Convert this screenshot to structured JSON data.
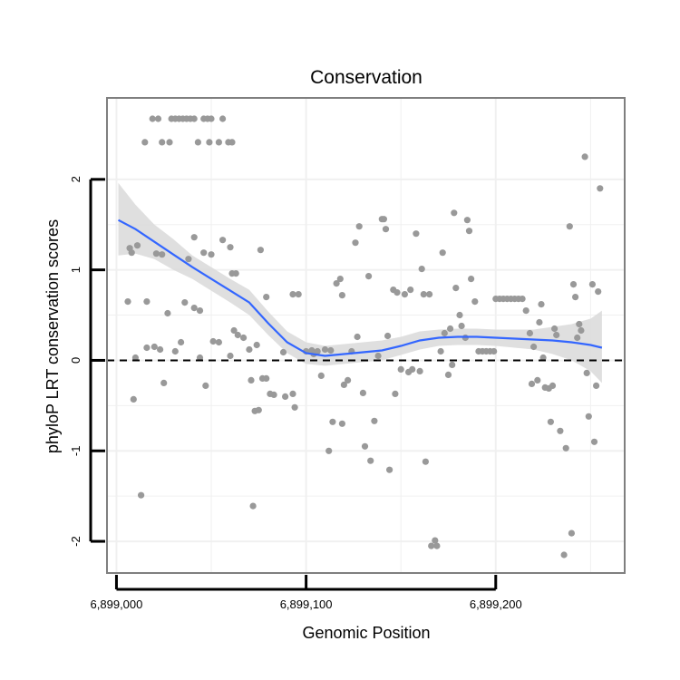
{
  "chart_data": {
    "type": "scatter",
    "title": "Conservation",
    "xlabel": "Genomic Position",
    "ylabel": "phyloP LRT conservation scores",
    "xlim": [
      6898995,
      6899268
    ],
    "ylim": [
      -2.35,
      2.9
    ],
    "x_ticks": [
      {
        "value": 6899000,
        "label": "6,899,000"
      },
      {
        "value": 6899100,
        "label": "6,899,100"
      },
      {
        "value": 6899200,
        "label": "6,899,200"
      }
    ],
    "y_ticks": [
      {
        "value": -2,
        "label": "-2"
      },
      {
        "value": -1,
        "label": "-1"
      },
      {
        "value": 0,
        "label": "0"
      },
      {
        "value": 1,
        "label": "1"
      },
      {
        "value": 2,
        "label": "2"
      }
    ],
    "reference_line": {
      "y": 0,
      "style": "dashed"
    },
    "colors": {
      "points": "#999999",
      "smooth": "#3366FF",
      "band": "#d9d9d9",
      "frame": "#7f7f7f",
      "grid": "#f0f0f0"
    },
    "series": [
      {
        "name": "scores",
        "points": [
          [
            6899019,
            2.67
          ],
          [
            6899022,
            2.67
          ],
          [
            6899029,
            2.67
          ],
          [
            6899031,
            2.67
          ],
          [
            6899033,
            2.67
          ],
          [
            6899035,
            2.67
          ],
          [
            6899037,
            2.67
          ],
          [
            6899039,
            2.67
          ],
          [
            6899041,
            2.67
          ],
          [
            6899046,
            2.67
          ],
          [
            6899048,
            2.67
          ],
          [
            6899050,
            2.67
          ],
          [
            6899056,
            2.67
          ],
          [
            6899015,
            2.41
          ],
          [
            6899024,
            2.41
          ],
          [
            6899028,
            2.41
          ],
          [
            6899043,
            2.41
          ],
          [
            6899049,
            2.41
          ],
          [
            6899054,
            2.41
          ],
          [
            6899059,
            2.41
          ],
          [
            6899061,
            2.41
          ],
          [
            6899007,
            1.24
          ],
          [
            6899008,
            1.19
          ],
          [
            6899011,
            1.27
          ],
          [
            6899021,
            1.18
          ],
          [
            6899024,
            1.17
          ],
          [
            6899038,
            1.12
          ],
          [
            6899041,
            1.36
          ],
          [
            6899046,
            1.19
          ],
          [
            6899050,
            1.17
          ],
          [
            6899056,
            1.33
          ],
          [
            6899060,
            1.25
          ],
          [
            6899061,
            0.96
          ],
          [
            6899063,
            0.96
          ],
          [
            6899076,
            1.22
          ],
          [
            6899006,
            0.65
          ],
          [
            6899016,
            0.65
          ],
          [
            6899027,
            0.52
          ],
          [
            6899036,
            0.64
          ],
          [
            6899041,
            0.58
          ],
          [
            6899044,
            0.55
          ],
          [
            6899062,
            0.33
          ],
          [
            6899064,
            0.28
          ],
          [
            6899067,
            0.25
          ],
          [
            6899070,
            0.12
          ],
          [
            6899074,
            0.17
          ],
          [
            6899079,
            0.7
          ],
          [
            6899088,
            0.09
          ],
          [
            6899093,
            0.73
          ],
          [
            6899096,
            0.73
          ],
          [
            6899010,
            0.03
          ],
          [
            6899016,
            0.14
          ],
          [
            6899020,
            0.15
          ],
          [
            6899023,
            0.12
          ],
          [
            6899025,
            -0.25
          ],
          [
            6899031,
            0.1
          ],
          [
            6899034,
            0.2
          ],
          [
            6899044,
            0.03
          ],
          [
            6899047,
            -0.28
          ],
          [
            6899051,
            0.21
          ],
          [
            6899054,
            0.2
          ],
          [
            6899060,
            0.05
          ],
          [
            6899009,
            -0.43
          ],
          [
            6899013,
            -1.49
          ],
          [
            6899072,
            -1.61
          ],
          [
            6899071,
            -0.22
          ],
          [
            6899073,
            -0.56
          ],
          [
            6899075,
            -0.55
          ],
          [
            6899077,
            -0.2
          ],
          [
            6899079,
            -0.2
          ],
          [
            6899081,
            -0.37
          ],
          [
            6899083,
            -0.38
          ],
          [
            6899089,
            -0.4
          ],
          [
            6899093,
            -0.37
          ],
          [
            6899094,
            -0.52
          ],
          [
            6899100,
            0.1
          ],
          [
            6899103,
            0.11
          ],
          [
            6899104,
            0.07
          ],
          [
            6899106,
            0.1
          ],
          [
            6899108,
            -0.17
          ],
          [
            6899110,
            0.12
          ],
          [
            6899112,
            -1.0
          ],
          [
            6899113,
            0.11
          ],
          [
            6899114,
            -0.68
          ],
          [
            6899116,
            0.85
          ],
          [
            6899118,
            0.9
          ],
          [
            6899119,
            -0.7
          ],
          [
            6899119,
            0.72
          ],
          [
            6899120,
            -0.27
          ],
          [
            6899122,
            -0.22
          ],
          [
            6899124,
            0.1
          ],
          [
            6899126,
            1.3
          ],
          [
            6899127,
            0.26
          ],
          [
            6899128,
            1.48
          ],
          [
            6899130,
            -0.36
          ],
          [
            6899131,
            -0.95
          ],
          [
            6899133,
            0.93
          ],
          [
            6899134,
            -1.11
          ],
          [
            6899136,
            -0.67
          ],
          [
            6899138,
            0.05
          ],
          [
            6899140,
            1.56
          ],
          [
            6899141,
            1.56
          ],
          [
            6899142,
            1.45
          ],
          [
            6899143,
            0.27
          ],
          [
            6899144,
            -1.21
          ],
          [
            6899146,
            0.78
          ],
          [
            6899147,
            -0.37
          ],
          [
            6899148,
            0.75
          ],
          [
            6899150,
            -0.1
          ],
          [
            6899152,
            0.73
          ],
          [
            6899154,
            -0.13
          ],
          [
            6899155,
            0.78
          ],
          [
            6899156,
            -0.1
          ],
          [
            6899158,
            1.4
          ],
          [
            6899160,
            -0.12
          ],
          [
            6899161,
            1.01
          ],
          [
            6899162,
            0.73
          ],
          [
            6899163,
            -1.12
          ],
          [
            6899165,
            0.73
          ],
          [
            6899166,
            -2.05
          ],
          [
            6899168,
            -1.99
          ],
          [
            6899169,
            -2.05
          ],
          [
            6899171,
            0.1
          ],
          [
            6899172,
            1.19
          ],
          [
            6899173,
            0.3
          ],
          [
            6899175,
            -0.16
          ],
          [
            6899176,
            0.35
          ],
          [
            6899177,
            -0.05
          ],
          [
            6899178,
            1.63
          ],
          [
            6899179,
            0.8
          ],
          [
            6899181,
            0.5
          ],
          [
            6899182,
            0.38
          ],
          [
            6899184,
            0.25
          ],
          [
            6899185,
            1.55
          ],
          [
            6899186,
            1.43
          ],
          [
            6899187,
            0.9
          ],
          [
            6899189,
            0.65
          ],
          [
            6899191,
            0.1
          ],
          [
            6899193,
            0.1
          ],
          [
            6899195,
            0.1
          ],
          [
            6899197,
            0.1
          ],
          [
            6899199,
            0.1
          ],
          [
            6899200,
            0.68
          ],
          [
            6899202,
            0.68
          ],
          [
            6899204,
            0.68
          ],
          [
            6899206,
            0.68
          ],
          [
            6899208,
            0.68
          ],
          [
            6899210,
            0.68
          ],
          [
            6899212,
            0.68
          ],
          [
            6899214,
            0.68
          ],
          [
            6899216,
            0.55
          ],
          [
            6899218,
            0.3
          ],
          [
            6899219,
            -0.26
          ],
          [
            6899220,
            0.15
          ],
          [
            6899222,
            -0.22
          ],
          [
            6899223,
            0.42
          ],
          [
            6899224,
            0.62
          ],
          [
            6899225,
            0.03
          ],
          [
            6899226,
            -0.3
          ],
          [
            6899228,
            -0.31
          ],
          [
            6899229,
            -0.68
          ],
          [
            6899230,
            -0.28
          ],
          [
            6899231,
            0.35
          ],
          [
            6899232,
            0.28
          ],
          [
            6899234,
            -0.78
          ],
          [
            6899236,
            -2.15
          ],
          [
            6899237,
            -0.97
          ],
          [
            6899239,
            1.48
          ],
          [
            6899240,
            -1.91
          ],
          [
            6899241,
            0.84
          ],
          [
            6899242,
            0.7
          ],
          [
            6899243,
            0.25
          ],
          [
            6899244,
            0.4
          ],
          [
            6899245,
            0.33
          ],
          [
            6899247,
            2.25
          ],
          [
            6899248,
            -0.14
          ],
          [
            6899249,
            -0.62
          ],
          [
            6899251,
            0.84
          ],
          [
            6899252,
            -0.9
          ],
          [
            6899253,
            -0.28
          ],
          [
            6899254,
            0.76
          ],
          [
            6899255,
            1.9
          ]
        ]
      }
    ],
    "smooth": {
      "method": "loess",
      "x": [
        6899001,
        6899010,
        6899020,
        6899030,
        6899040,
        6899050,
        6899060,
        6899070,
        6899080,
        6899090,
        6899100,
        6899110,
        6899120,
        6899130,
        6899140,
        6899150,
        6899160,
        6899170,
        6899180,
        6899190,
        6899200,
        6899210,
        6899220,
        6899230,
        6899240,
        6899250,
        6899256
      ],
      "y": [
        1.55,
        1.45,
        1.31,
        1.17,
        1.03,
        0.9,
        0.77,
        0.64,
        0.41,
        0.2,
        0.08,
        0.05,
        0.07,
        0.09,
        0.11,
        0.16,
        0.22,
        0.25,
        0.26,
        0.26,
        0.25,
        0.24,
        0.23,
        0.22,
        0.2,
        0.17,
        0.14
      ],
      "ci_lower": [
        1.16,
        1.18,
        1.12,
        1.0,
        0.9,
        0.77,
        0.64,
        0.5,
        0.28,
        0.08,
        -0.04,
        -0.06,
        -0.04,
        -0.02,
        -0.0,
        0.06,
        0.12,
        0.16,
        0.17,
        0.17,
        0.16,
        0.14,
        0.12,
        0.07,
        0.0,
        -0.12,
        -0.25
      ],
      "ci_upper": [
        1.96,
        1.72,
        1.5,
        1.34,
        1.16,
        1.03,
        0.9,
        0.78,
        0.54,
        0.32,
        0.2,
        0.16,
        0.18,
        0.2,
        0.22,
        0.26,
        0.32,
        0.34,
        0.35,
        0.35,
        0.34,
        0.34,
        0.34,
        0.37,
        0.4,
        0.46,
        0.55
      ]
    }
  }
}
